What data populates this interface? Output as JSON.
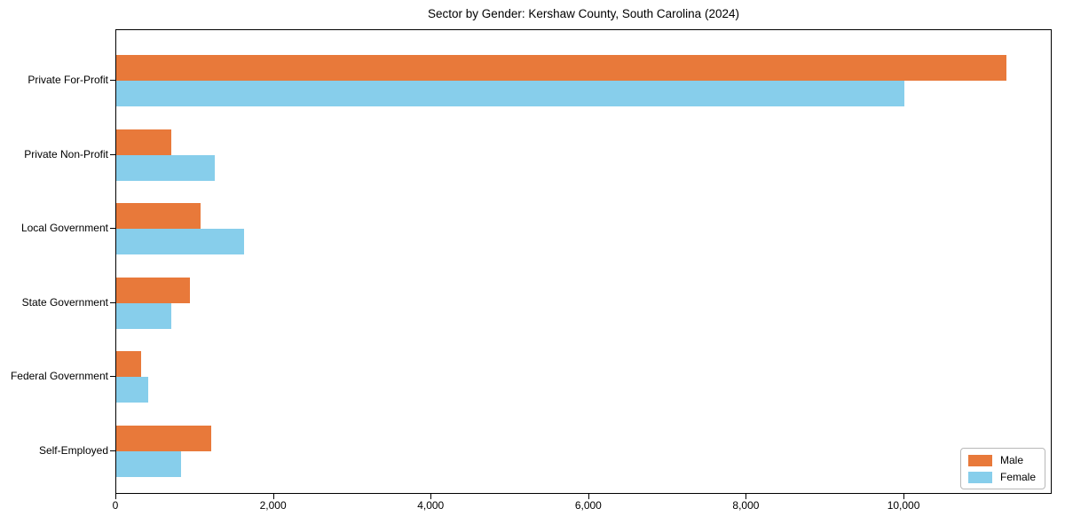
{
  "figure": {
    "title": "Sector by Gender: Kershaw County, South Carolina (2024)"
  },
  "chart_data": {
    "type": "bar",
    "orientation": "horizontal",
    "title": "Sector by Gender: Kershaw County, South Carolina (2024)",
    "xlabel": "",
    "ylabel": "",
    "categories": [
      "Private For-Profit",
      "Private Non-Profit",
      "Local Government",
      "State Government",
      "Federal Government",
      "Self-Employed"
    ],
    "series": [
      {
        "name": "Male",
        "color": "#e8793a",
        "values": [
          11300,
          700,
          1070,
          930,
          310,
          1200
        ]
      },
      {
        "name": "Female",
        "color": "#87ceeb",
        "values": [
          10000,
          1250,
          1620,
          700,
          410,
          820
        ]
      }
    ],
    "xlim": [
      0,
      11880
    ],
    "xticks": [
      {
        "value": 0,
        "label": "0"
      },
      {
        "value": 2000,
        "label": "2,000"
      },
      {
        "value": 4000,
        "label": "4,000"
      },
      {
        "value": 6000,
        "label": "6,000"
      },
      {
        "value": 8000,
        "label": "8,000"
      },
      {
        "value": 10000,
        "label": "10,000"
      }
    ],
    "grid": false,
    "legend": {
      "position": "lower right"
    }
  }
}
